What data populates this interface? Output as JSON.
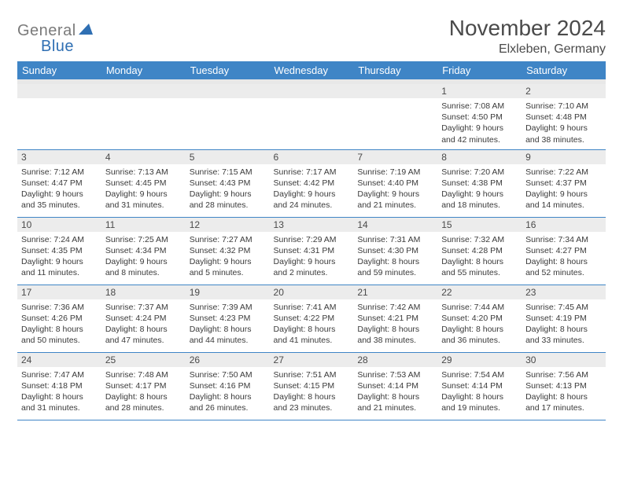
{
  "logo": {
    "gray": "General",
    "blue": "Blue"
  },
  "title": "November 2024",
  "location": "Elxleben, Germany",
  "columns": [
    "Sunday",
    "Monday",
    "Tuesday",
    "Wednesday",
    "Thursday",
    "Friday",
    "Saturday"
  ],
  "colors": {
    "header_bg": "#3f85c6",
    "header_fg": "#ffffff",
    "band_bg": "#ececec",
    "cell_border": "#3f85c6",
    "text": "#4a4a4a",
    "logo_gray": "#7a7a7a",
    "logo_blue": "#2f6fb3"
  },
  "weeks": [
    [
      {
        "n": "",
        "sr": "",
        "ss": "",
        "dl": ""
      },
      {
        "n": "",
        "sr": "",
        "ss": "",
        "dl": ""
      },
      {
        "n": "",
        "sr": "",
        "ss": "",
        "dl": ""
      },
      {
        "n": "",
        "sr": "",
        "ss": "",
        "dl": ""
      },
      {
        "n": "",
        "sr": "",
        "ss": "",
        "dl": ""
      },
      {
        "n": "1",
        "sr": "Sunrise: 7:08 AM",
        "ss": "Sunset: 4:50 PM",
        "dl": "Daylight: 9 hours and 42 minutes."
      },
      {
        "n": "2",
        "sr": "Sunrise: 7:10 AM",
        "ss": "Sunset: 4:48 PM",
        "dl": "Daylight: 9 hours and 38 minutes."
      }
    ],
    [
      {
        "n": "3",
        "sr": "Sunrise: 7:12 AM",
        "ss": "Sunset: 4:47 PM",
        "dl": "Daylight: 9 hours and 35 minutes."
      },
      {
        "n": "4",
        "sr": "Sunrise: 7:13 AM",
        "ss": "Sunset: 4:45 PM",
        "dl": "Daylight: 9 hours and 31 minutes."
      },
      {
        "n": "5",
        "sr": "Sunrise: 7:15 AM",
        "ss": "Sunset: 4:43 PM",
        "dl": "Daylight: 9 hours and 28 minutes."
      },
      {
        "n": "6",
        "sr": "Sunrise: 7:17 AM",
        "ss": "Sunset: 4:42 PM",
        "dl": "Daylight: 9 hours and 24 minutes."
      },
      {
        "n": "7",
        "sr": "Sunrise: 7:19 AM",
        "ss": "Sunset: 4:40 PM",
        "dl": "Daylight: 9 hours and 21 minutes."
      },
      {
        "n": "8",
        "sr": "Sunrise: 7:20 AM",
        "ss": "Sunset: 4:38 PM",
        "dl": "Daylight: 9 hours and 18 minutes."
      },
      {
        "n": "9",
        "sr": "Sunrise: 7:22 AM",
        "ss": "Sunset: 4:37 PM",
        "dl": "Daylight: 9 hours and 14 minutes."
      }
    ],
    [
      {
        "n": "10",
        "sr": "Sunrise: 7:24 AM",
        "ss": "Sunset: 4:35 PM",
        "dl": "Daylight: 9 hours and 11 minutes."
      },
      {
        "n": "11",
        "sr": "Sunrise: 7:25 AM",
        "ss": "Sunset: 4:34 PM",
        "dl": "Daylight: 9 hours and 8 minutes."
      },
      {
        "n": "12",
        "sr": "Sunrise: 7:27 AM",
        "ss": "Sunset: 4:32 PM",
        "dl": "Daylight: 9 hours and 5 minutes."
      },
      {
        "n": "13",
        "sr": "Sunrise: 7:29 AM",
        "ss": "Sunset: 4:31 PM",
        "dl": "Daylight: 9 hours and 2 minutes."
      },
      {
        "n": "14",
        "sr": "Sunrise: 7:31 AM",
        "ss": "Sunset: 4:30 PM",
        "dl": "Daylight: 8 hours and 59 minutes."
      },
      {
        "n": "15",
        "sr": "Sunrise: 7:32 AM",
        "ss": "Sunset: 4:28 PM",
        "dl": "Daylight: 8 hours and 55 minutes."
      },
      {
        "n": "16",
        "sr": "Sunrise: 7:34 AM",
        "ss": "Sunset: 4:27 PM",
        "dl": "Daylight: 8 hours and 52 minutes."
      }
    ],
    [
      {
        "n": "17",
        "sr": "Sunrise: 7:36 AM",
        "ss": "Sunset: 4:26 PM",
        "dl": "Daylight: 8 hours and 50 minutes."
      },
      {
        "n": "18",
        "sr": "Sunrise: 7:37 AM",
        "ss": "Sunset: 4:24 PM",
        "dl": "Daylight: 8 hours and 47 minutes."
      },
      {
        "n": "19",
        "sr": "Sunrise: 7:39 AM",
        "ss": "Sunset: 4:23 PM",
        "dl": "Daylight: 8 hours and 44 minutes."
      },
      {
        "n": "20",
        "sr": "Sunrise: 7:41 AM",
        "ss": "Sunset: 4:22 PM",
        "dl": "Daylight: 8 hours and 41 minutes."
      },
      {
        "n": "21",
        "sr": "Sunrise: 7:42 AM",
        "ss": "Sunset: 4:21 PM",
        "dl": "Daylight: 8 hours and 38 minutes."
      },
      {
        "n": "22",
        "sr": "Sunrise: 7:44 AM",
        "ss": "Sunset: 4:20 PM",
        "dl": "Daylight: 8 hours and 36 minutes."
      },
      {
        "n": "23",
        "sr": "Sunrise: 7:45 AM",
        "ss": "Sunset: 4:19 PM",
        "dl": "Daylight: 8 hours and 33 minutes."
      }
    ],
    [
      {
        "n": "24",
        "sr": "Sunrise: 7:47 AM",
        "ss": "Sunset: 4:18 PM",
        "dl": "Daylight: 8 hours and 31 minutes."
      },
      {
        "n": "25",
        "sr": "Sunrise: 7:48 AM",
        "ss": "Sunset: 4:17 PM",
        "dl": "Daylight: 8 hours and 28 minutes."
      },
      {
        "n": "26",
        "sr": "Sunrise: 7:50 AM",
        "ss": "Sunset: 4:16 PM",
        "dl": "Daylight: 8 hours and 26 minutes."
      },
      {
        "n": "27",
        "sr": "Sunrise: 7:51 AM",
        "ss": "Sunset: 4:15 PM",
        "dl": "Daylight: 8 hours and 23 minutes."
      },
      {
        "n": "28",
        "sr": "Sunrise: 7:53 AM",
        "ss": "Sunset: 4:14 PM",
        "dl": "Daylight: 8 hours and 21 minutes."
      },
      {
        "n": "29",
        "sr": "Sunrise: 7:54 AM",
        "ss": "Sunset: 4:14 PM",
        "dl": "Daylight: 8 hours and 19 minutes."
      },
      {
        "n": "30",
        "sr": "Sunrise: 7:56 AM",
        "ss": "Sunset: 4:13 PM",
        "dl": "Daylight: 8 hours and 17 minutes."
      }
    ]
  ]
}
